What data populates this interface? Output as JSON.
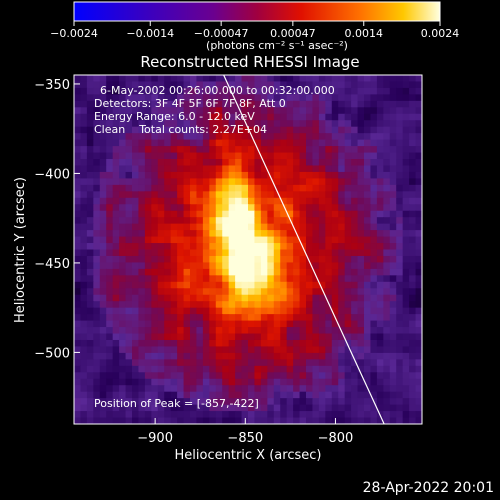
{
  "colorbar": {
    "ticks": [
      "-0.0024",
      "-0.0014",
      "-0.00047",
      "0.00047",
      "0.0014",
      "0.0024"
    ],
    "tick_values": [
      -0.0024,
      -0.0014,
      -0.00047,
      0.00047,
      0.0014,
      0.0024
    ],
    "range": [
      -0.0024,
      0.0024
    ],
    "unit_label": "(photons cm⁻² s⁻¹ asec⁻²)",
    "colors": [
      "#0000ff",
      "#3a00c0",
      "#7000a0",
      "#a00060",
      "#d01010",
      "#ff6000",
      "#ffc000",
      "#ffffd0"
    ]
  },
  "chart_data": {
    "type": "heatmap",
    "title": "Reconstructed RHESSI Image",
    "xlabel": "Heliocentric X (arcsec)",
    "ylabel": "Heliocentric Y (arcsec)",
    "xlim": [
      -945,
      -752
    ],
    "ylim": [
      -540,
      -345
    ],
    "xticks": [
      -900,
      -850,
      -800
    ],
    "yticks": [
      -350,
      -400,
      -450,
      -500
    ],
    "xtick_labels": [
      "-900",
      "-850",
      "-800"
    ],
    "ytick_labels": [
      "-350",
      "-400",
      "-450",
      "-500"
    ],
    "peak": {
      "x": -857,
      "y": -422
    },
    "secondary_peak": {
      "x": -845,
      "y": -455
    },
    "limb_line": [
      [
        -862,
        -345
      ],
      [
        -773,
        -540
      ]
    ],
    "annotations": [
      "6-May-2002 00:26:00.000 to 00:32:00.000",
      "Detectors: 3F 4F 5F 6F 7F 8F, Att 0",
      "Energy Range: 6.0 - 12.0 keV",
      "Clean    Total counts: 2.27E+04"
    ],
    "peak_label": "Position of Peak = [-857,-422]"
  },
  "footer": {
    "timestamp": "28-Apr-2022 20:01"
  }
}
